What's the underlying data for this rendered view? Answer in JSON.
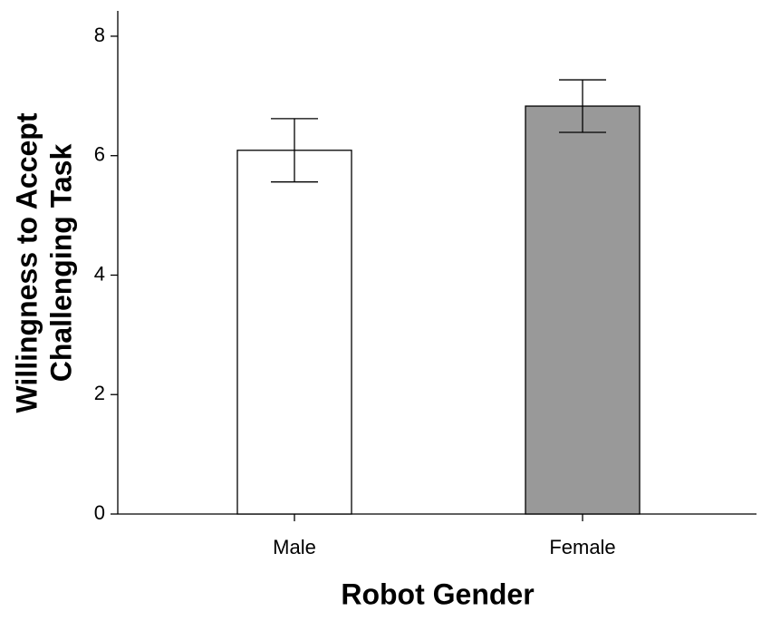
{
  "chart_data": {
    "type": "bar",
    "categories": [
      "Male",
      "Female"
    ],
    "values": [
      6.09,
      6.83
    ],
    "errors": [
      0.53,
      0.44
    ],
    "colors": [
      "#ffffff",
      "#999999"
    ],
    "xlabel": "Robot Gender",
    "ylabel": [
      "Willingness to Accept",
      "Challenging Task"
    ],
    "ylim": [
      0,
      8.4
    ],
    "yticks": [
      0,
      2,
      4,
      6,
      8
    ]
  }
}
